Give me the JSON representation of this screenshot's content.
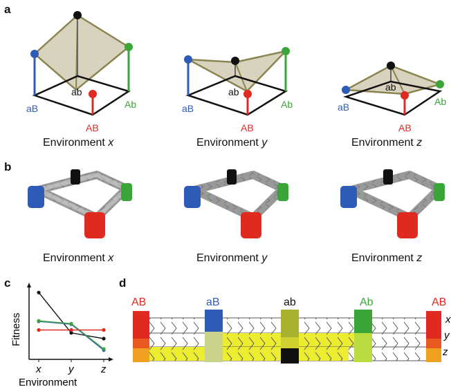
{
  "panels": {
    "a": "a",
    "b": "b",
    "c": "c",
    "d": "d"
  },
  "env_caption": {
    "prefix": "Environment",
    "x": "x",
    "y": "y",
    "z": "z"
  },
  "genotypes": {
    "AB": "AB",
    "aB": "aB",
    "ab": "ab",
    "Ab": "Ab"
  },
  "chart_data": {
    "type": "line",
    "xlabel": "Environment",
    "ylabel": "Fitness",
    "categories": [
      "x",
      "y",
      "z"
    ],
    "series": [
      {
        "name": "ab",
        "color": "#111111",
        "values": [
          0.95,
          0.25,
          0.15
        ]
      },
      {
        "name": "aB",
        "color": "#2e5bb8",
        "values": [
          0.45,
          0.4,
          -0.05
        ]
      },
      {
        "name": "Ab",
        "color": "#3aa63a",
        "values": [
          0.46,
          0.41,
          -0.03
        ]
      },
      {
        "name": "AB",
        "color": "#e02a20",
        "values": [
          0.3,
          0.3,
          0.3
        ]
      }
    ],
    "ylim": [
      -0.15,
      1.05
    ],
    "grid": false
  },
  "colors": {
    "AB": "#e02a20",
    "aB": "#2e5bb8",
    "ab": "#111111",
    "Ab": "#3aa63a",
    "surface": "#d8d2bf",
    "surface_edge": "#8a8550",
    "highlight": "#ecec30",
    "orange": "#f0a020"
  },
  "row_labels": [
    "x",
    "y",
    "z"
  ]
}
